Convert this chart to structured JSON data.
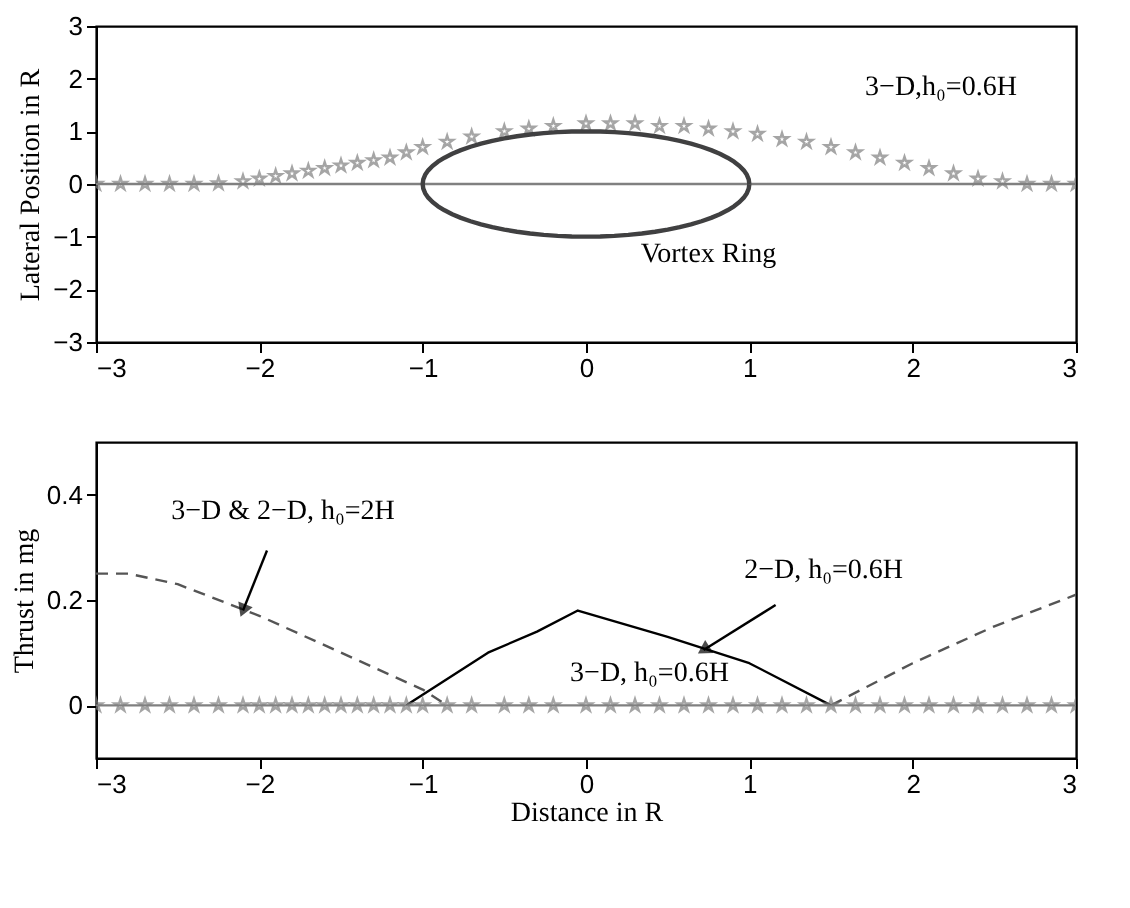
{
  "chart_data": [
    {
      "type": "line",
      "ylabel": "Lateral Position in R",
      "xlim": [
        -3,
        3
      ],
      "ylim": [
        -3,
        3
      ],
      "xticks": [
        -3,
        -2,
        -1,
        0,
        1,
        2,
        3
      ],
      "yticks": [
        -3,
        -2,
        -1,
        0,
        1,
        2,
        3
      ],
      "annotations": [
        {
          "text": "3−D,h₀=0.6H",
          "x": 1.5,
          "y": 0.7
        },
        "Vortex Ring"
      ],
      "series": [
        {
          "type": "line",
          "color": "#808080",
          "line_style": "solid",
          "marker": "none",
          "x": [
            -3,
            3
          ],
          "values": [
            0,
            0
          ]
        },
        {
          "type": "scatter",
          "color": "#808080",
          "marker": "star",
          "x": [
            -3,
            -2.85,
            -2.7,
            -2.55,
            -2.4,
            -2.25,
            -2.1,
            -2.0,
            -1.9,
            -1.8,
            -1.7,
            -1.6,
            -1.5,
            -1.4,
            -1.3,
            -1.2,
            -1.1,
            -1.0,
            -0.85,
            -0.7,
            -0.5,
            -0.35,
            -0.2,
            0,
            0.15,
            0.3,
            0.45,
            0.6,
            0.75,
            0.9,
            1.05,
            1.2,
            1.35,
            1.5,
            1.65,
            1.8,
            1.95,
            2.1,
            2.25,
            2.4,
            2.55,
            2.7,
            2.85,
            3
          ],
          "values": [
            0,
            0,
            0,
            0,
            0,
            0.01,
            0.05,
            0.1,
            0.15,
            0.2,
            0.25,
            0.3,
            0.35,
            0.4,
            0.45,
            0.5,
            0.6,
            0.7,
            0.8,
            0.9,
            1.0,
            1.05,
            1.1,
            1.15,
            1.15,
            1.15,
            1.1,
            1.1,
            1.05,
            1.0,
            0.95,
            0.85,
            0.8,
            0.7,
            0.6,
            0.5,
            0.4,
            0.3,
            0.2,
            0.1,
            0.05,
            0,
            0,
            0
          ]
        }
      ]
    },
    {
      "type": "line",
      "xlabel": "Distance in R",
      "ylabel": "Thrust in mg",
      "xlim": [
        -3,
        3
      ],
      "ylim": [
        -0.1,
        0.5
      ],
      "xticks": [
        -3,
        -2,
        -1,
        0,
        1,
        2,
        3
      ],
      "yticks": [
        0,
        0.2,
        0.4
      ],
      "annotations": [
        {
          "text": "3−D & 2−D, h₀=2H",
          "x": -2.1,
          "y": 0.18
        },
        {
          "text": "2−D, h₀=0.6H",
          "x": 0.72,
          "y": 0.105
        },
        {
          "text": "3−D, h₀=0.6H",
          "x": 0.45,
          "y": 0
        }
      ],
      "series": [
        {
          "type": "line",
          "color": "#555555",
          "line_style": "dashed",
          "marker": "none",
          "x": [
            -3,
            -2.8,
            -2.5,
            -2.0,
            -1.5,
            -1.0,
            -0.85,
            0,
            1.5,
            2.0,
            2.5,
            3
          ],
          "values": [
            0.25,
            0.25,
            0.23,
            0.17,
            0.1,
            0.03,
            0.0,
            null,
            0.0,
            0.08,
            0.15,
            0.21
          ]
        },
        {
          "type": "line",
          "color": "#000000",
          "line_style": "solid",
          "marker": "none",
          "x": [
            -1.1,
            -0.9,
            -0.6,
            -0.3,
            -0.05,
            0.5,
            1.0,
            1.5
          ],
          "values": [
            0,
            0.04,
            0.1,
            0.14,
            0.18,
            0.13,
            0.08,
            0
          ]
        },
        {
          "type": "line",
          "color": "#808080",
          "line_style": "solid",
          "marker": "star",
          "x": [
            -3,
            -2.85,
            -2.7,
            -2.55,
            -2.4,
            -2.25,
            -2.1,
            -2.0,
            -1.9,
            -1.8,
            -1.7,
            -1.6,
            -1.5,
            -1.4,
            -1.3,
            -1.2,
            -1.1,
            -1.0,
            -0.85,
            -0.7,
            -0.5,
            -0.35,
            -0.2,
            0,
            0.15,
            0.3,
            0.45,
            0.6,
            0.75,
            0.9,
            1.05,
            1.2,
            1.35,
            1.5,
            1.65,
            1.8,
            1.95,
            2.1,
            2.25,
            2.4,
            2.55,
            2.7,
            2.85,
            3
          ],
          "values": [
            0,
            0,
            0,
            0,
            0,
            0,
            0,
            0,
            0,
            0,
            0,
            0,
            0,
            0,
            0,
            0,
            0,
            0,
            0,
            0,
            0,
            0,
            0,
            0,
            0,
            0,
            0,
            0,
            0,
            0,
            0,
            0,
            0,
            0,
            0,
            0,
            0,
            0,
            0,
            0,
            0,
            0,
            0,
            0
          ]
        }
      ]
    }
  ]
}
